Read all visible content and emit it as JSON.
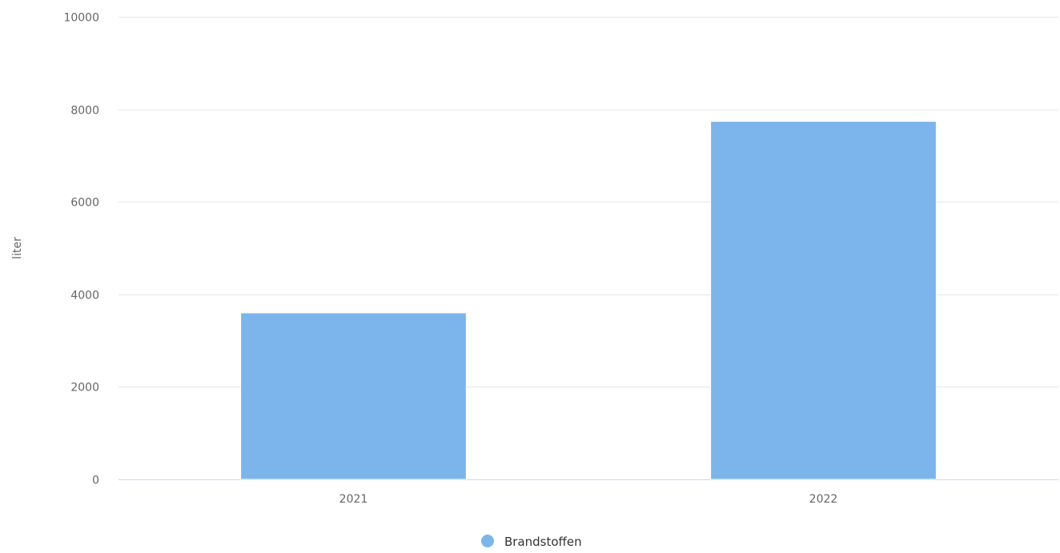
{
  "chart_data": {
    "type": "bar",
    "categories": [
      "2021",
      "2022"
    ],
    "series": [
      {
        "name": "Brandstoffen",
        "values": [
          3600,
          7740
        ],
        "color": "#7cb5ec"
      }
    ],
    "ylabel": "liter",
    "xlabel": "",
    "ylim": [
      0,
      10000
    ],
    "yticks": [
      0,
      2000,
      4000,
      6000,
      8000,
      10000
    ],
    "grid": true,
    "legend_position": "bottom-center"
  }
}
